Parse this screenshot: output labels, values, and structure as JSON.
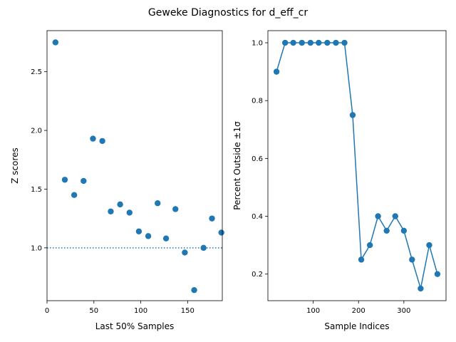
{
  "figure": {
    "title": "Geweke Diagnostics for d_eff_cr",
    "accent_color": "#1f77b4"
  },
  "chart_data": [
    {
      "type": "scatter",
      "xlabel": "Last 50% Samples",
      "ylabel": "Z scores",
      "xlim": [
        0,
        187
      ],
      "ylim": [
        0.55,
        2.85
      ],
      "xticks": [
        0,
        50,
        100,
        150
      ],
      "yticks": [
        1.0,
        1.5,
        2.0,
        2.5
      ],
      "xtick_labels": [
        "0",
        "50",
        "100",
        "150"
      ],
      "ytick_labels": [
        "1.0",
        "1.5",
        "2.0",
        "2.5"
      ],
      "grid": false,
      "reference_line": {
        "y": 1.0,
        "style": "dotted"
      },
      "x": [
        9,
        19,
        29,
        39,
        49,
        59,
        68,
        78,
        88,
        98,
        108,
        118,
        127,
        137,
        147,
        157,
        167,
        176,
        186
      ],
      "y": [
        2.75,
        1.58,
        1.45,
        1.57,
        1.93,
        1.91,
        1.31,
        1.37,
        1.3,
        1.14,
        1.1,
        1.38,
        1.08,
        1.33,
        0.96,
        0.64,
        1.0,
        1.25,
        1.13
      ]
    },
    {
      "type": "line",
      "markers": true,
      "xlabel": "Sample Indices",
      "ylabel": "Percent Outside ±1σ",
      "xlim": [
        0,
        393
      ],
      "ylim": [
        0.108,
        1.042
      ],
      "xticks": [
        100,
        200,
        300
      ],
      "yticks": [
        0.2,
        0.4,
        0.6,
        0.8,
        1.0
      ],
      "xtick_labels": [
        "100",
        "200",
        "300"
      ],
      "ytick_labels": [
        "0.2",
        "0.4",
        "0.6",
        "0.8",
        "1.0"
      ],
      "grid": false,
      "x": [
        19,
        38,
        56,
        75,
        94,
        112,
        131,
        150,
        169,
        187,
        206,
        225,
        243,
        262,
        281,
        300,
        318,
        337,
        356,
        374
      ],
      "y": [
        0.9,
        1.0,
        1.0,
        1.0,
        1.0,
        1.0,
        1.0,
        1.0,
        1.0,
        0.75,
        0.25,
        0.3,
        0.4,
        0.35,
        0.4,
        0.35,
        0.25,
        0.15,
        0.3,
        0.2
      ]
    }
  ]
}
